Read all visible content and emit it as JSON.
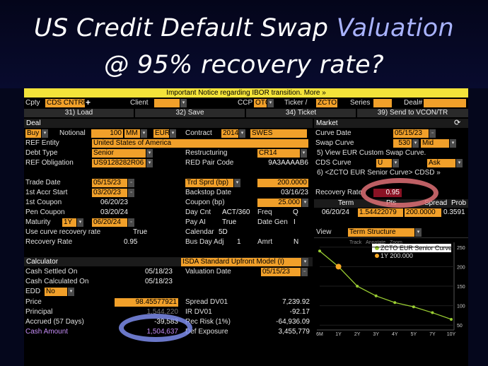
{
  "title": {
    "line1_a": "US Credit Default Swap ",
    "line1_b": "Valuation",
    "line2": "@ 95% recovery rate?"
  },
  "notice": "Important Notice regarding IBOR transition. More »",
  "toprow": {
    "cpty_label": "Cpty",
    "cpty_value": "CDS CNTRP",
    "plus": "+",
    "client_label": "Client",
    "ccp_label": "CCP",
    "ccp_value": "OTC",
    "ticker_label": "Ticker /",
    "ticker_value": "ZCTO",
    "series_label": "Series",
    "deal_label": "Deal#"
  },
  "actions": {
    "load": "31) Load",
    "save": "32) Save",
    "ticket": "34) Ticket",
    "send": "39) Send to VCON/TR"
  },
  "deal": {
    "section": "Deal",
    "side": "Buy",
    "notional_label": "Notional",
    "notional": "100",
    "mm": "MM",
    "currency": "EUR",
    "contract_label": "Contract",
    "contract_year": "2014",
    "contract_type": "SWES",
    "ref_entity_label": "REF Entity",
    "ref_entity": "United States of America",
    "debt_type_label": "Debt Type",
    "debt_type": "Senior",
    "restructuring_label": "Restructuring",
    "restructuring": "CR14",
    "ref_obligation_label": "REF Obligation",
    "ref_obligation": "US9128282R06",
    "red_pair_label": "RED Pair Code",
    "red_pair": "9A3AAAAB6",
    "trade_date_label": "Trade Date",
    "trade_date": "05/15/23",
    "trd_sprd_label": "Trd Sprd (bp)",
    "trd_sprd": "200.0000",
    "accr_start_label": "1st Accr Start",
    "accr_start": "03/20/23",
    "backstop_label": "Backstop Date",
    "backstop": "03/16/23",
    "first_coupon_label": "1st Coupon",
    "first_coupon": "06/20/23",
    "coupon_label": "Coupon (bp)",
    "coupon": "25.000",
    "pen_coupon_label": "Pen Coupon",
    "pen_coupon": "03/20/24",
    "day_cnt_label": "Day Cnt",
    "day_cnt": "ACT/360",
    "freq_label": "Freq",
    "freq": "Q",
    "maturity_label": "Maturity",
    "maturity_tenor": "1Y",
    "maturity": "06/20/24",
    "pay_ai_label": "Pay AI",
    "pay_ai": "True",
    "date_gen_label": "Date Gen",
    "date_gen": "I",
    "use_curve_label": "Use curve recovery rate",
    "use_curve": "True",
    "calendar_label": "Calendar",
    "calendar": "5D",
    "recovery_label": "Recovery Rate",
    "recovery": "0.95",
    "bus_day_label": "Bus Day Adj",
    "bus_day": "1",
    "amrt_label": "Amrt",
    "amrt": "N"
  },
  "market": {
    "section": "Market",
    "curve_date_label": "Curve Date",
    "curve_date": "05/15/23",
    "swap_curve_label": "Swap Curve",
    "swap_curve": "530",
    "swap_side": "Mid",
    "view_eur": "5) View EUR Custom Swap Curve.",
    "cds_curve_label": "CDS Curve",
    "cds_curve": "U",
    "cds_side": "Ask",
    "cds_link": "6) <ZCTO EUR Senior Curve> CDSD »",
    "recovery_label": "Recovery Rate",
    "recovery": "0.95",
    "table": {
      "headers": [
        "Term",
        "Pts",
        "Spread",
        "Prob"
      ],
      "row": [
        "06/20/24",
        "1.54422079",
        "200.0000",
        "0.3591"
      ]
    },
    "view_label": "View",
    "view_value": "Term Structure"
  },
  "chart": {
    "toolbar": [
      "Track",
      "Annotate",
      "Zoom"
    ],
    "legend": [
      "ZCTO EUR Senior Curve",
      "1Y 200.000"
    ],
    "colors": {
      "curve": "#9acd32",
      "trade": "#f5a623"
    }
  },
  "chart_data": {
    "type": "line",
    "x": [
      "6M",
      "1Y",
      "2Y",
      "3Y",
      "4Y",
      "5Y",
      "7Y",
      "10Y"
    ],
    "series": [
      {
        "name": "ZCTO EUR Senior Curve",
        "values": [
          240,
          200,
          150,
          125,
          108,
          97,
          82,
          65
        ]
      },
      {
        "name": "1Y 200.000",
        "values": [
          null,
          200,
          null,
          null,
          null,
          null,
          null,
          null
        ]
      }
    ],
    "yticks": [
      "250",
      "200",
      "150",
      "100",
      "50"
    ],
    "ylim": [
      45,
      255
    ]
  },
  "calculator": {
    "section": "Calculator",
    "model": "ISDA Standard Upfront Model (I)",
    "cash_settled_label": "Cash Settled On",
    "cash_settled": "05/18/23",
    "valuation_label": "Valuation Date",
    "valuation": "05/15/23",
    "cash_calc_label": "Cash Calculated On",
    "cash_calc": "05/18/23",
    "edd_label": "EDD",
    "edd": "No",
    "price_label": "Price",
    "price": "98.45577921",
    "spread_dv01_label": "Spread DV01",
    "spread_dv01": "7,239.92",
    "principal_label": "Principal",
    "principal": "1,544,220",
    "ir_dv01_label": "IR DV01",
    "ir_dv01": "-92.17",
    "accrued_label": "Accrued (57 Days)",
    "accrued": "-39,583",
    "rec_risk_label": "Rec Risk (1%)",
    "rec_risk": "-64,936.09",
    "cash_amount_label": "Cash Amount",
    "cash_amount": "1,504,637",
    "def_exposure_label": "Def Exposure",
    "def_exposure": "3,455,779"
  }
}
